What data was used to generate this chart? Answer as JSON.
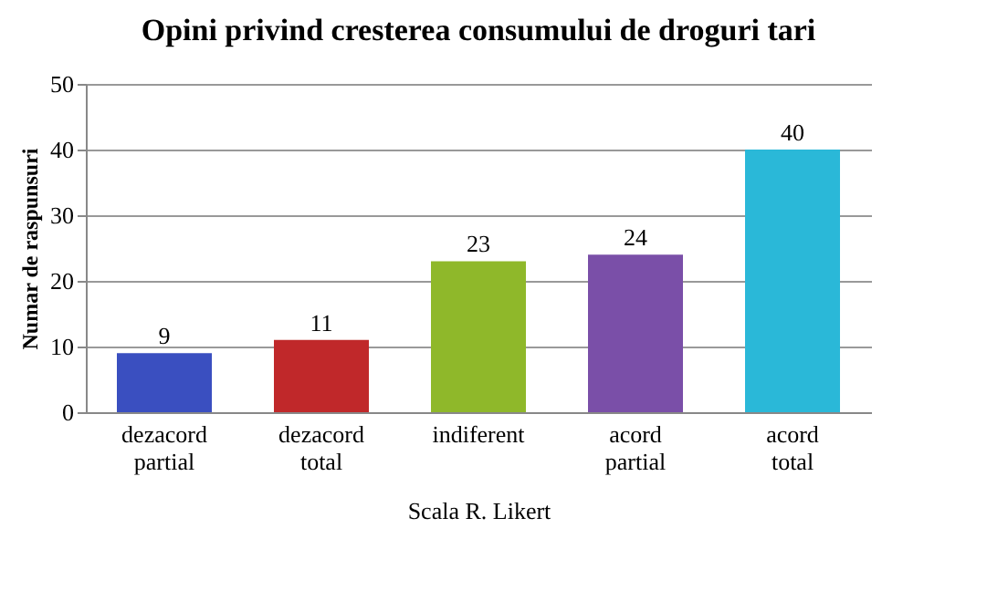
{
  "chart_data": {
    "type": "bar",
    "title": "Opini privind cresterea consumului de droguri tari",
    "xlabel": "Scala R. Likert",
    "ylabel": "Numar de raspunsuri",
    "categories": [
      "dezacord partial",
      "dezacord total",
      "indiferent",
      "acord partial",
      "acord total"
    ],
    "values": [
      9,
      11,
      23,
      24,
      40
    ],
    "colors": [
      "#3a4fc0",
      "#c0282a",
      "#8fb82a",
      "#7a4fa8",
      "#2ab8d8"
    ],
    "ylim": [
      0,
      50
    ],
    "yticks": [
      0,
      10,
      20,
      30,
      40,
      50
    ],
    "grid": "y",
    "data_labels": true
  }
}
